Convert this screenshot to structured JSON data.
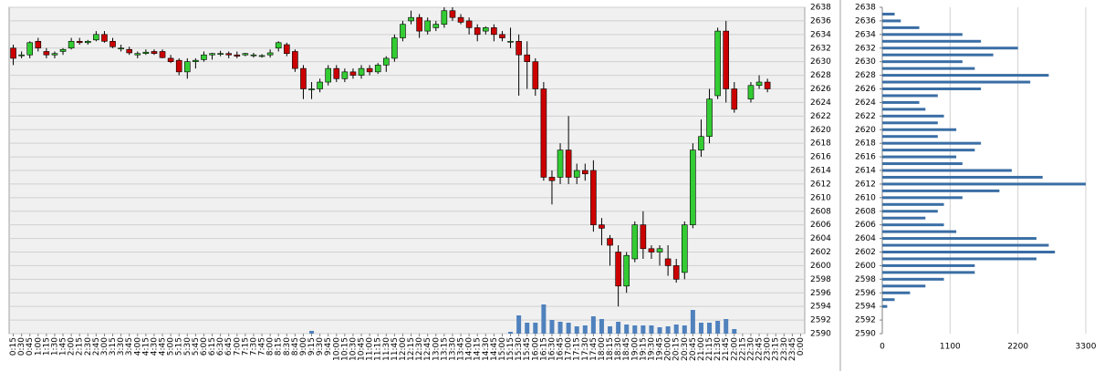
{
  "chart_data": [
    {
      "type": "candlestick",
      "categories": [
        "0:15",
        "0:30",
        "0:45",
        "1:00",
        "1:15",
        "1:30",
        "1:45",
        "2:00",
        "2:15",
        "2:30",
        "2:45",
        "3:00",
        "3:15",
        "3:30",
        "3:45",
        "4:00",
        "4:15",
        "4:30",
        "4:45",
        "5:00",
        "5:15",
        "5:30",
        "5:45",
        "6:00",
        "6:15",
        "6:30",
        "6:45",
        "7:00",
        "7:15",
        "7:30",
        "7:45",
        "8:00",
        "8:15",
        "8:30",
        "8:45",
        "9:00",
        "9:15",
        "9:30",
        "9:45",
        "10:00",
        "10:15",
        "10:30",
        "10:45",
        "11:00",
        "11:15",
        "11:30",
        "11:45",
        "12:00",
        "12:15",
        "12:30",
        "12:45",
        "13:00",
        "13:15",
        "13:30",
        "13:45",
        "14:00",
        "14:15",
        "14:30",
        "14:45",
        "15:00",
        "15:15",
        "15:30",
        "15:45",
        "16:00",
        "16:15",
        "16:30",
        "16:45",
        "17:00",
        "17:15",
        "17:30",
        "17:45",
        "18:00",
        "18:15",
        "18:30",
        "18:45",
        "19:00",
        "19:15",
        "19:30",
        "19:45",
        "20:00",
        "20:15",
        "20:30",
        "20:45",
        "21:00",
        "21:15",
        "21:30",
        "21:45",
        "22:00",
        "22:15",
        "22:30",
        "22:45",
        "23:00",
        "23:15",
        "23:30",
        "23:45",
        "0:00"
      ],
      "open": [
        2632,
        2631,
        2631,
        2633,
        2631.5,
        2631,
        2631.5,
        2632,
        2633,
        2632.8,
        2633.2,
        2634,
        2633,
        2632,
        2631.8,
        2631,
        2631.2,
        2631.5,
        2631.5,
        2630.5,
        2630.2,
        2628.5,
        2630,
        2630.3,
        2631,
        2631.2,
        2631.2,
        2631,
        2631,
        2630.9,
        2630.8,
        2631,
        2632,
        2632.5,
        2631.5,
        2629,
        2626,
        2626,
        2627,
        2629,
        2627.5,
        2628.5,
        2628,
        2629,
        2628.5,
        2629.5,
        2630.5,
        2633.5,
        2636,
        2636.5,
        2634.5,
        2635,
        2635.5,
        2637.5,
        2636.5,
        2636,
        2635,
        2634.5,
        2635,
        2634,
        2633,
        2633,
        2631,
        2630,
        2626,
        2613,
        2613,
        2617,
        2613,
        2614,
        2614,
        2606,
        2604,
        2602,
        2597,
        2601,
        2606,
        2602.5,
        2602,
        2601,
        2600,
        2599,
        2606,
        2617,
        2619,
        2625,
        2634.5,
        2626,
        null,
        2624.5,
        2626.5,
        2627,
        null,
        null,
        null,
        null
      ],
      "high": [
        2632.5,
        2631.5,
        2633,
        2633.5,
        2632,
        2631.5,
        2632,
        2633.5,
        2633.5,
        2633.2,
        2634.5,
        2634.5,
        2633.5,
        2632.5,
        2632.2,
        2631.5,
        2631.8,
        2631.8,
        2631.8,
        2631,
        2630.5,
        2630.5,
        2630.5,
        2631.5,
        2631.3,
        2631.6,
        2631.5,
        2631.5,
        2631.3,
        2631.3,
        2631.1,
        2631.8,
        2633,
        2632.8,
        2631.8,
        2629.5,
        2627,
        2627.5,
        2629.5,
        2629.5,
        2629,
        2629,
        2629.5,
        2629.5,
        2629.8,
        2630.8,
        2634,
        2636,
        2637.5,
        2637,
        2636.5,
        2636,
        2638,
        2638,
        2637,
        2636.5,
        2635.5,
        2635.2,
        2635.5,
        2634.5,
        2635,
        2634,
        2633,
        2630.5,
        2627,
        2614,
        2618,
        2622,
        2615,
        2615,
        2615.5,
        2607,
        2604.5,
        2603,
        2602,
        2606.5,
        2608,
        2603,
        2603,
        2603,
        2601,
        2606.5,
        2618,
        2621.5,
        2626,
        2635,
        2636,
        2627,
        null,
        2627,
        2628,
        2627.5,
        null,
        null,
        null,
        null
      ],
      "low": [
        2629.5,
        2630.5,
        2630.5,
        2631.5,
        2630.5,
        2630.5,
        2631,
        2631.8,
        2632.5,
        2632.5,
        2633,
        2632.8,
        2632,
        2631.5,
        2631,
        2630.5,
        2631,
        2631,
        2630.5,
        2629.8,
        2628,
        2627.5,
        2629,
        2630,
        2630.3,
        2630.8,
        2630.5,
        2630.5,
        2630.8,
        2630.6,
        2630.6,
        2630.6,
        2631.5,
        2630.8,
        2628.5,
        2624.5,
        2624.5,
        2625.5,
        2626.5,
        2627,
        2627,
        2627.5,
        2627.5,
        2628,
        2628.2,
        2628.5,
        2630,
        2633,
        2635.5,
        2633.5,
        2634,
        2634.5,
        2635,
        2636,
        2635.5,
        2634,
        2633,
        2634,
        2633,
        2633,
        2632,
        2625,
        2626,
        2625,
        2612.5,
        2609,
        2612,
        2612,
        2612,
        2612.5,
        2605,
        2603,
        2600,
        2594,
        2596,
        2600.5,
        2601,
        2601,
        2600,
        2598.5,
        2597.5,
        2598,
        2605.5,
        2616,
        2618,
        2624.5,
        2624,
        2622.5,
        null,
        2624,
        2626,
        2625.5,
        null,
        null,
        null,
        null
      ],
      "close": [
        2630.5,
        2631,
        2632.8,
        2632,
        2631,
        2631.2,
        2631.8,
        2633,
        2632.8,
        2633,
        2634,
        2633,
        2632.2,
        2632,
        2631.3,
        2631.2,
        2631.4,
        2631.2,
        2630.6,
        2630,
        2628.5,
        2630,
        2630.2,
        2631,
        2631.2,
        2631.2,
        2631,
        2630.8,
        2631.2,
        2631,
        2630.9,
        2631.3,
        2632.8,
        2631.2,
        2629,
        2626,
        2626,
        2627,
        2629,
        2627.5,
        2628.5,
        2628,
        2629,
        2628.5,
        2629.5,
        2630.5,
        2633.5,
        2635.5,
        2636.5,
        2634.5,
        2636,
        2635.5,
        2637.5,
        2636.5,
        2635.8,
        2635,
        2634,
        2635,
        2634,
        2633.5,
        2633,
        2631,
        2630,
        2626,
        2613,
        2612.5,
        2617,
        2613,
        2614,
        2613.5,
        2606,
        2605.5,
        2603,
        2597,
        2601.5,
        2606,
        2602.5,
        2602,
        2602.5,
        2600,
        2598,
        2606,
        2617,
        2619,
        2624.5,
        2634.5,
        2626,
        2623,
        null,
        2626.5,
        2627,
        2626,
        null,
        null,
        null,
        null
      ],
      "volume": [
        null,
        null,
        null,
        null,
        null,
        null,
        null,
        null,
        null,
        null,
        null,
        null,
        null,
        null,
        null,
        null,
        null,
        null,
        null,
        null,
        null,
        null,
        null,
        null,
        null,
        null,
        null,
        null,
        null,
        null,
        null,
        null,
        null,
        null,
        null,
        null,
        3,
        null,
        null,
        null,
        null,
        null,
        null,
        null,
        null,
        null,
        null,
        null,
        null,
        null,
        null,
        null,
        null,
        null,
        null,
        null,
        null,
        null,
        null,
        null,
        2,
        20,
        12,
        12,
        32,
        15,
        13,
        12,
        8,
        9,
        19,
        16,
        8,
        13,
        10,
        9,
        9,
        9,
        7,
        8,
        10,
        9,
        26,
        12,
        12,
        14,
        16,
        5,
        null,
        null,
        null,
        null,
        null,
        null,
        null,
        null
      ],
      "up_color": "#33cc33",
      "down_color": "#cc0000",
      "volume_color": "#4f81bd",
      "ylim": [
        2590,
        2638
      ],
      "yticks": [
        2590,
        2592,
        2594,
        2596,
        2598,
        2600,
        2602,
        2604,
        2606,
        2608,
        2610,
        2612,
        2614,
        2616,
        2618,
        2620,
        2622,
        2624,
        2626,
        2628,
        2630,
        2632,
        2634,
        2636,
        2638
      ],
      "grid": true
    },
    {
      "type": "hbar",
      "y": [
        2594,
        2595,
        2596,
        2597,
        2598,
        2599,
        2600,
        2601,
        2602,
        2603,
        2604,
        2605,
        2606,
        2607,
        2608,
        2609,
        2610,
        2611,
        2612,
        2613,
        2614,
        2615,
        2616,
        2617,
        2618,
        2619,
        2620,
        2621,
        2622,
        2623,
        2624,
        2625,
        2626,
        2627,
        2628,
        2629,
        2630,
        2631,
        2632,
        2633,
        2634,
        2635,
        2636,
        2637
      ],
      "values": [
        80,
        200,
        450,
        700,
        1000,
        1500,
        1500,
        2500,
        2800,
        2700,
        2500,
        1200,
        1000,
        700,
        900,
        1000,
        1300,
        1900,
        3300,
        2600,
        2100,
        1300,
        1200,
        1500,
        1600,
        900,
        1200,
        900,
        1000,
        700,
        600,
        900,
        1600,
        2400,
        2700,
        1500,
        1300,
        1800,
        2200,
        1600,
        1300,
        600,
        300,
        200
      ],
      "color": "#3a6ea5",
      "xlim": [
        0,
        3300
      ],
      "xticks": [
        0,
        1100,
        2200,
        3300
      ],
      "ylim": [
        2590,
        2638
      ],
      "yticks": [
        2590,
        2592,
        2594,
        2596,
        2598,
        2600,
        2602,
        2604,
        2606,
        2608,
        2610,
        2612,
        2614,
        2616,
        2618,
        2620,
        2622,
        2624,
        2626,
        2628,
        2630,
        2632,
        2634,
        2636,
        2638
      ],
      "grid": true
    }
  ]
}
